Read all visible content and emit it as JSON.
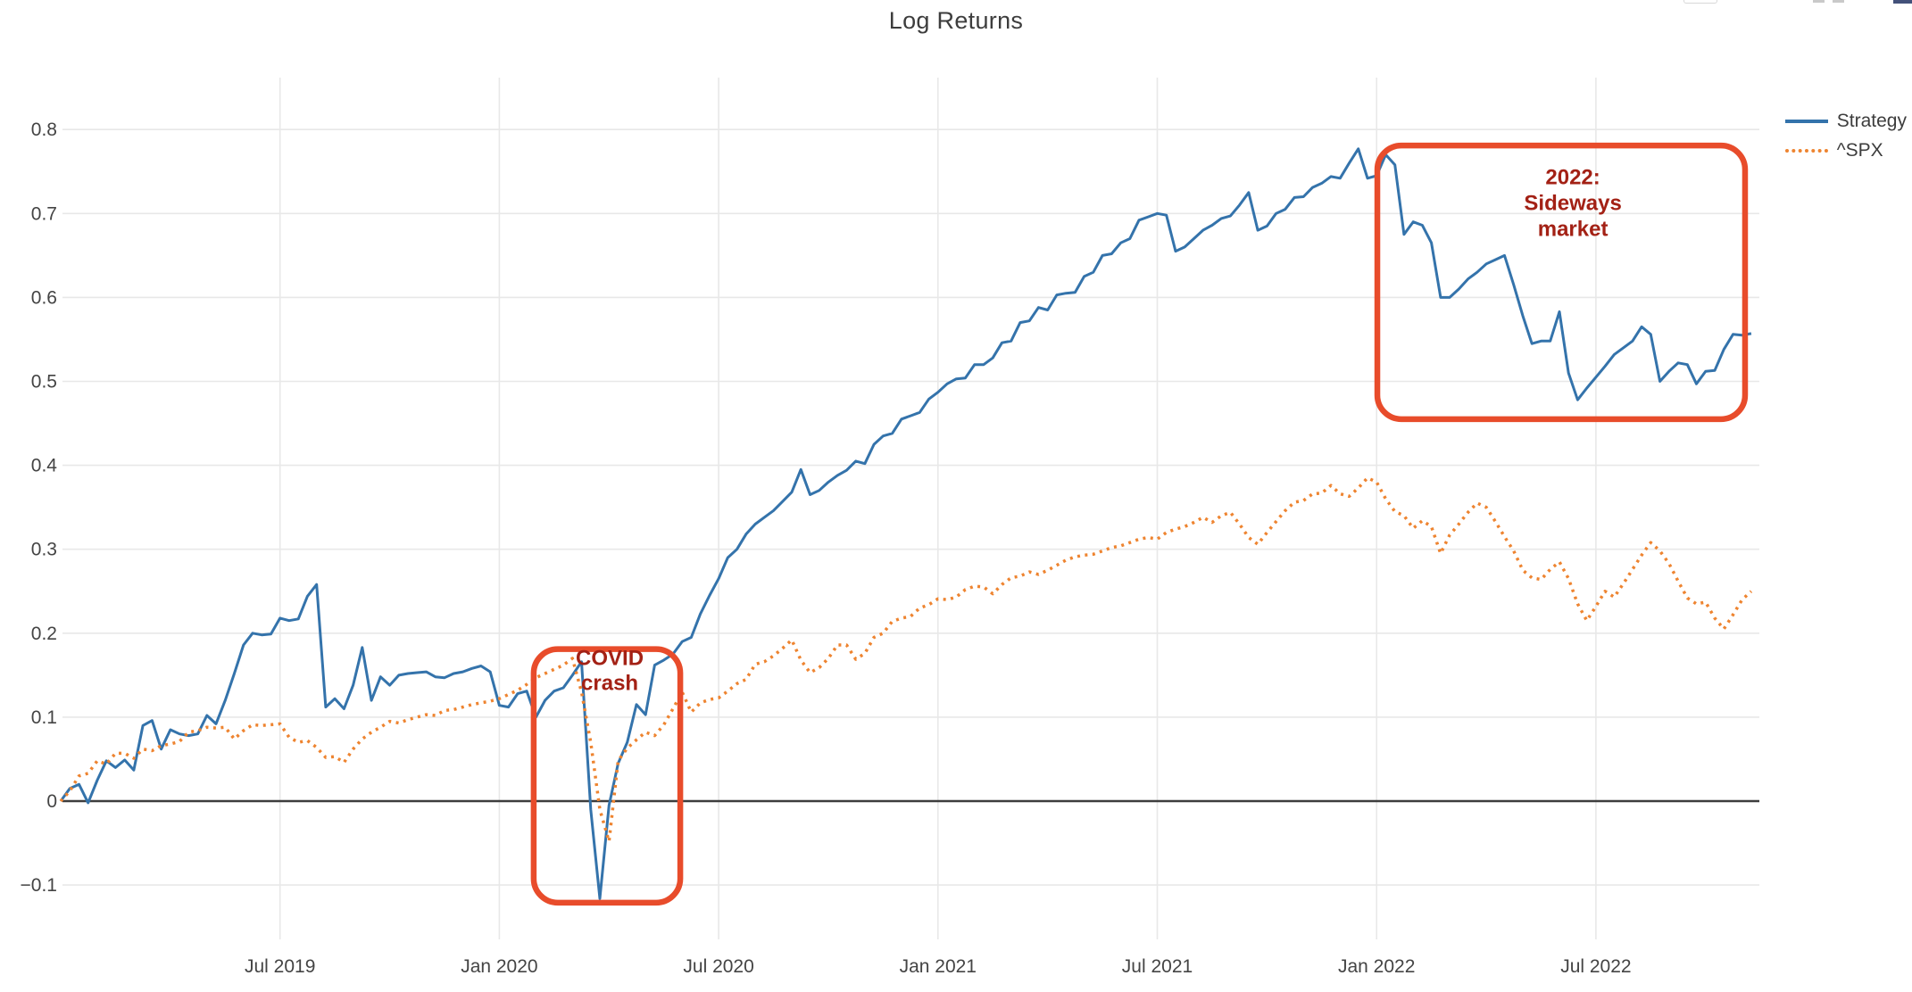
{
  "title": "Log Returns",
  "legend": [
    {
      "label": "Strategy",
      "color": "#3473ab",
      "style": "solid"
    },
    {
      "label": "^SPX",
      "color": "#ee8430",
      "style": "dotted"
    }
  ],
  "colors": {
    "strategy_line": "#3473ab",
    "spx_line": "#ee8430",
    "annotation_box": "#e84c2b",
    "annotation_text": "#a32115",
    "grid": "#e8e8e8",
    "zero_line": "#3d3d3d",
    "tick_text": "#444444",
    "title_text": "#3d3d3d"
  },
  "chart_data": {
    "type": "line",
    "title": "Log Returns",
    "xlabel": "",
    "ylabel": "",
    "grid": true,
    "legend_position": "top-right",
    "x_unit": "months since 2019-01",
    "x_axis": {
      "ticks": [
        {
          "m": 6,
          "label": "Jul 2019"
        },
        {
          "m": 12,
          "label": "Jan 2020"
        },
        {
          "m": 18,
          "label": "Jul 2020"
        },
        {
          "m": 24,
          "label": "Jan 2021"
        },
        {
          "m": 30,
          "label": "Jul 2021"
        },
        {
          "m": 36,
          "label": "Jan 2022"
        },
        {
          "m": 42,
          "label": "Jul 2022"
        }
      ]
    },
    "y_axis": {
      "range": [
        -0.165,
        0.862
      ],
      "ticks": [
        {
          "v": 0.8,
          "label": "0.8"
        },
        {
          "v": 0.7,
          "label": "0.7"
        },
        {
          "v": 0.6,
          "label": "0.6"
        },
        {
          "v": 0.5,
          "label": "0.5"
        },
        {
          "v": 0.4,
          "label": "0.4"
        },
        {
          "v": 0.3,
          "label": "0.3"
        },
        {
          "v": 0.2,
          "label": "0.2"
        },
        {
          "v": 0.1,
          "label": "0.1"
        },
        {
          "v": 0.0,
          "label": "0"
        },
        {
          "v": -0.1,
          "label": "−0.1"
        }
      ]
    },
    "annotations": [
      {
        "name": "covid-crash",
        "lines": [
          "COVID",
          "crash"
        ],
        "box": {
          "m0": 12.94,
          "m1": 16.95,
          "v_top": 0.181,
          "v_bottom": -0.121
        },
        "text_m": 15.02,
        "text_v": 0.162,
        "line_h": 28
      },
      {
        "name": "sideways-2022",
        "lines": [
          "2022:",
          "Sideways",
          "market"
        ],
        "box": {
          "m0": 36.02,
          "m1": 46.08,
          "v_top": 0.781,
          "v_bottom": 0.455
        },
        "text_m": 41.37,
        "text_v": 0.735,
        "line_h": 29
      }
    ],
    "series": [
      {
        "name": "Strategy",
        "color": "#3473ab",
        "dash": "solid",
        "width": 3,
        "start_month": 0,
        "step_month": 0.25,
        "values": [
          0.0,
          0.015,
          0.02,
          -0.002,
          0.025,
          0.048,
          0.04,
          0.049,
          0.037,
          0.09,
          0.096,
          0.062,
          0.085,
          0.08,
          0.078,
          0.08,
          0.102,
          0.092,
          0.12,
          0.152,
          0.186,
          0.2,
          0.198,
          0.199,
          0.218,
          0.215,
          0.217,
          0.244,
          0.258,
          0.112,
          0.122,
          0.11,
          0.138,
          0.183,
          0.12,
          0.148,
          0.138,
          0.15,
          0.152,
          0.153,
          0.154,
          0.148,
          0.147,
          0.152,
          0.154,
          0.158,
          0.161,
          0.154,
          0.114,
          0.112,
          0.128,
          0.131,
          0.1,
          0.12,
          0.131,
          0.135,
          0.15,
          0.166,
          -0.01,
          -0.116,
          -0.005,
          0.045,
          0.07,
          0.115,
          0.103,
          0.162,
          0.168,
          0.175,
          0.19,
          0.195,
          0.223,
          0.245,
          0.265,
          0.29,
          0.3,
          0.318,
          0.33,
          0.338,
          0.346,
          0.357,
          0.368,
          0.395,
          0.365,
          0.37,
          0.38,
          0.388,
          0.394,
          0.405,
          0.402,
          0.425,
          0.435,
          0.438,
          0.455,
          0.459,
          0.463,
          0.479,
          0.487,
          0.497,
          0.503,
          0.504,
          0.52,
          0.52,
          0.528,
          0.546,
          0.548,
          0.57,
          0.572,
          0.588,
          0.585,
          0.603,
          0.605,
          0.606,
          0.625,
          0.63,
          0.65,
          0.652,
          0.665,
          0.67,
          0.692,
          0.696,
          0.7,
          0.698,
          0.655,
          0.66,
          0.67,
          0.68,
          0.686,
          0.694,
          0.697,
          0.71,
          0.725,
          0.68,
          0.685,
          0.7,
          0.705,
          0.719,
          0.72,
          0.731,
          0.736,
          0.744,
          0.742,
          0.76,
          0.777,
          0.742,
          0.745,
          0.77,
          0.758,
          0.675,
          0.69,
          0.686,
          0.665,
          0.6,
          0.6,
          0.61,
          0.622,
          0.63,
          0.64,
          0.645,
          0.65,
          0.615,
          0.578,
          0.545,
          0.548,
          0.548,
          0.583,
          0.51,
          0.478,
          0.492,
          0.505,
          0.518,
          0.532,
          0.54,
          0.548,
          0.565,
          0.556,
          0.5,
          0.512,
          0.522,
          0.52,
          0.497,
          0.512,
          0.513,
          0.538,
          0.556,
          0.555,
          0.557
        ]
      },
      {
        "name": "^SPX",
        "color": "#ee8430",
        "dash": "dotted",
        "width": 3.5,
        "start_month": 0,
        "step_month": 0.25,
        "values": [
          0.0,
          0.012,
          0.03,
          0.033,
          0.048,
          0.044,
          0.057,
          0.057,
          0.051,
          0.062,
          0.06,
          0.066,
          0.068,
          0.071,
          0.082,
          0.084,
          0.088,
          0.087,
          0.088,
          0.074,
          0.084,
          0.091,
          0.09,
          0.091,
          0.092,
          0.076,
          0.07,
          0.072,
          0.064,
          0.052,
          0.053,
          0.046,
          0.062,
          0.074,
          0.082,
          0.088,
          0.095,
          0.093,
          0.097,
          0.1,
          0.103,
          0.102,
          0.108,
          0.109,
          0.112,
          0.115,
          0.117,
          0.119,
          0.122,
          0.127,
          0.132,
          0.139,
          0.147,
          0.152,
          0.157,
          0.162,
          0.17,
          0.13,
          0.07,
          -0.01,
          -0.048,
          0.048,
          0.063,
          0.073,
          0.082,
          0.078,
          0.091,
          0.11,
          0.13,
          0.106,
          0.117,
          0.121,
          0.123,
          0.131,
          0.14,
          0.145,
          0.163,
          0.166,
          0.173,
          0.182,
          0.192,
          0.168,
          0.153,
          0.159,
          0.17,
          0.186,
          0.186,
          0.169,
          0.176,
          0.195,
          0.2,
          0.214,
          0.218,
          0.22,
          0.23,
          0.234,
          0.241,
          0.24,
          0.243,
          0.252,
          0.256,
          0.255,
          0.247,
          0.258,
          0.266,
          0.268,
          0.273,
          0.27,
          0.275,
          0.281,
          0.287,
          0.291,
          0.293,
          0.294,
          0.298,
          0.302,
          0.304,
          0.308,
          0.312,
          0.314,
          0.312,
          0.32,
          0.324,
          0.327,
          0.332,
          0.338,
          0.332,
          0.34,
          0.344,
          0.33,
          0.314,
          0.306,
          0.32,
          0.333,
          0.346,
          0.356,
          0.358,
          0.366,
          0.367,
          0.376,
          0.366,
          0.363,
          0.373,
          0.385,
          0.38,
          0.36,
          0.345,
          0.34,
          0.325,
          0.334,
          0.327,
          0.295,
          0.317,
          0.33,
          0.344,
          0.355,
          0.35,
          0.333,
          0.315,
          0.298,
          0.275,
          0.266,
          0.264,
          0.276,
          0.285,
          0.265,
          0.235,
          0.215,
          0.232,
          0.25,
          0.243,
          0.259,
          0.276,
          0.293,
          0.308,
          0.298,
          0.283,
          0.262,
          0.242,
          0.235,
          0.237,
          0.218,
          0.205,
          0.222,
          0.24,
          0.25
        ]
      }
    ]
  }
}
